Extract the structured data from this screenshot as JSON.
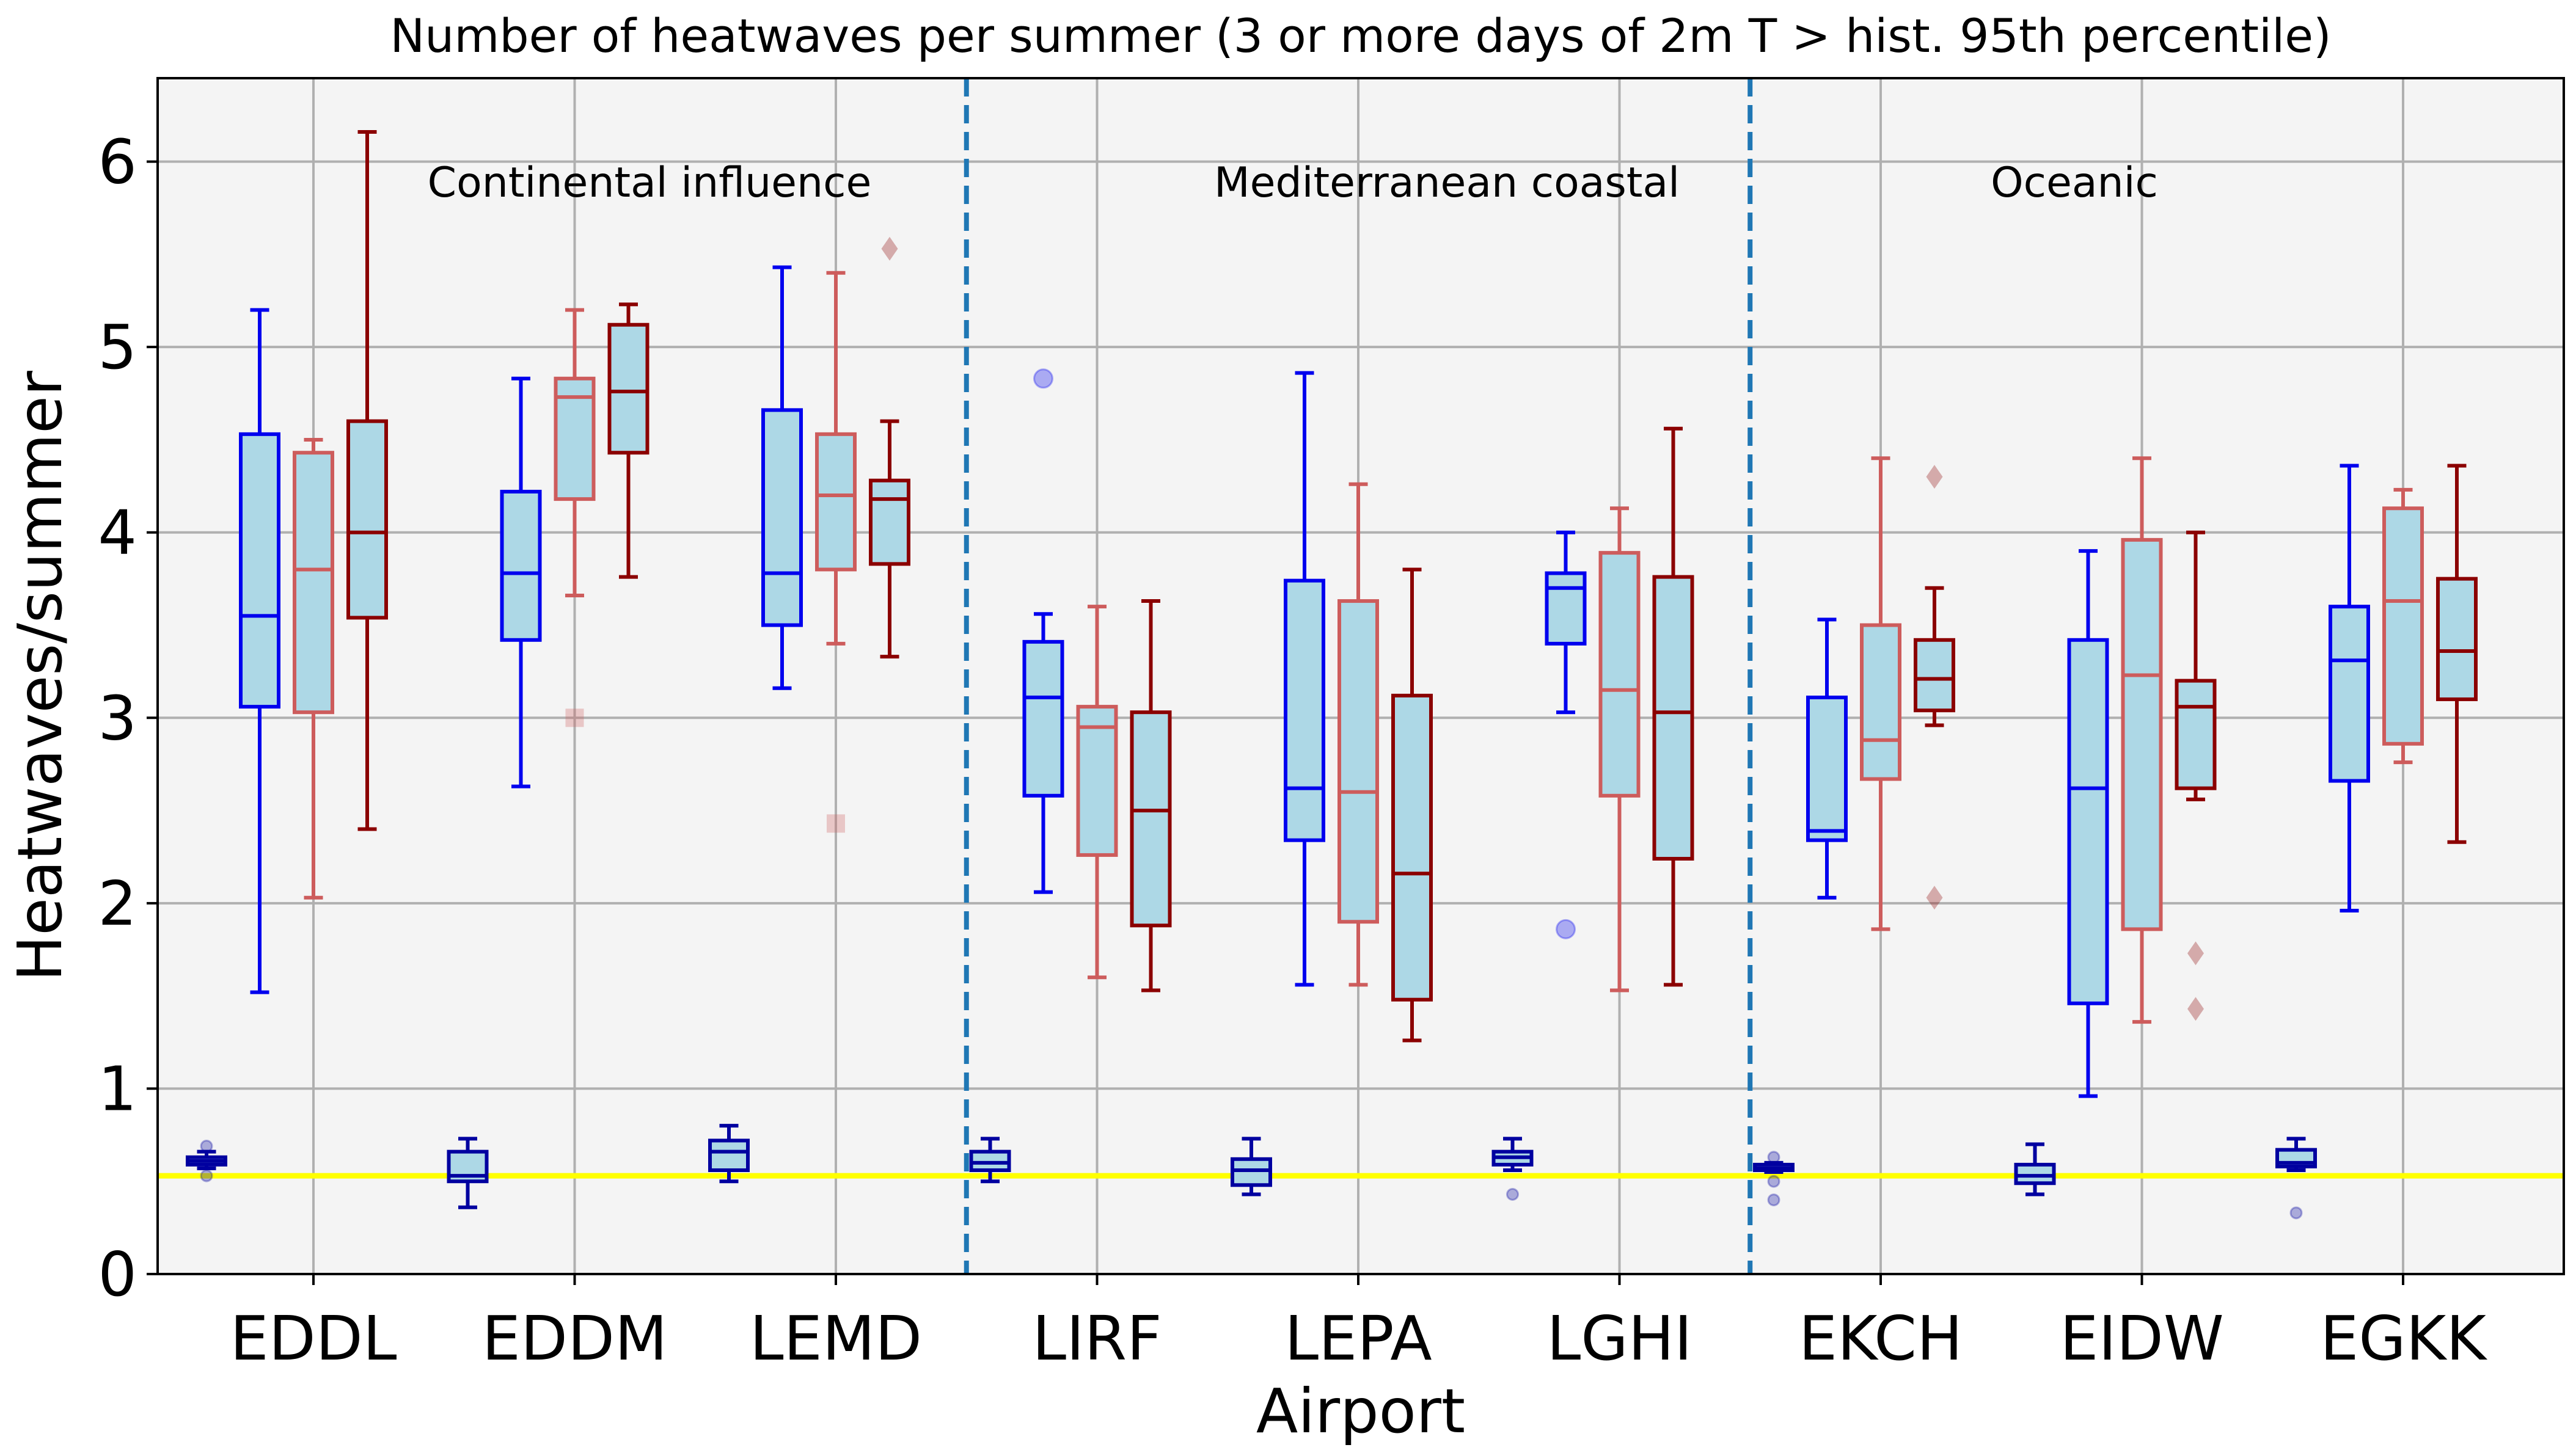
{
  "chart_data": {
    "type": "box",
    "title": "Number of heatwaves per summer (3 or more days of 2m T > hist. 95th percentile)",
    "xlabel": "Airport",
    "ylabel": "Heatwaves/summer",
    "ylim": [
      0,
      6.45
    ],
    "yticks": [
      0,
      1,
      2,
      3,
      4,
      5,
      6
    ],
    "grid": true,
    "categories": [
      "EDDL",
      "EDDM",
      "LEMD",
      "LIRF",
      "LEPA",
      "LGHI",
      "EKCH",
      "EIDW",
      "EGKK"
    ],
    "reference_line": {
      "y": 0.53,
      "color": "#ffff00"
    },
    "regions": [
      {
        "label": "Continental influence",
        "from": 0,
        "to": 2
      },
      {
        "label": "Mediterranean coastal",
        "from": 3,
        "to": 5
      },
      {
        "label": "Oceanic",
        "from": 6,
        "to": 8
      }
    ],
    "colors": {
      "background": "#f4f4f4",
      "box_fill": "#add8e6",
      "grid": "#b0b0b0",
      "divider": "#1f77b4",
      "historical": "#0000ee",
      "series_a": "#cd5c5c",
      "series_b": "#8b0000",
      "reference": "#0000a0"
    },
    "boxes": [
      {
        "airport": "EDDL",
        "slot": "historical",
        "min": 1.52,
        "q1": 3.06,
        "median": 3.55,
        "q3": 4.53,
        "max": 5.2,
        "outliers": []
      },
      {
        "airport": "EDDL",
        "slot": "series_a",
        "min": 2.03,
        "q1": 3.03,
        "median": 3.8,
        "q3": 4.43,
        "max": 4.5,
        "outliers": []
      },
      {
        "airport": "EDDL",
        "slot": "series_b",
        "min": 2.4,
        "q1": 3.54,
        "median": 4.0,
        "q3": 4.6,
        "max": 6.16,
        "outliers": []
      },
      {
        "airport": "EDDM",
        "slot": "historical",
        "min": 2.63,
        "q1": 3.42,
        "median": 3.78,
        "q3": 4.22,
        "max": 4.83,
        "outliers": []
      },
      {
        "airport": "EDDM",
        "slot": "series_a",
        "min": 3.66,
        "q1": 4.18,
        "median": 4.73,
        "q3": 4.83,
        "max": 5.2,
        "outliers": [
          3.0
        ]
      },
      {
        "airport": "EDDM",
        "slot": "series_b",
        "min": 3.76,
        "q1": 4.43,
        "median": 4.76,
        "q3": 5.12,
        "max": 5.23,
        "outliers": []
      },
      {
        "airport": "LEMD",
        "slot": "historical",
        "min": 3.16,
        "q1": 3.5,
        "median": 3.78,
        "q3": 4.66,
        "max": 5.43,
        "outliers": []
      },
      {
        "airport": "LEMD",
        "slot": "series_a",
        "min": 3.4,
        "q1": 3.8,
        "median": 4.2,
        "q3": 4.53,
        "max": 5.4,
        "outliers": [
          2.43
        ]
      },
      {
        "airport": "LEMD",
        "slot": "series_b",
        "min": 3.33,
        "q1": 3.83,
        "median": 4.18,
        "q3": 4.28,
        "max": 4.6,
        "outliers": [
          5.53
        ]
      },
      {
        "airport": "LIRF",
        "slot": "historical",
        "min": 2.06,
        "q1": 2.58,
        "median": 3.11,
        "q3": 3.41,
        "max": 3.56,
        "outliers": [
          4.83
        ]
      },
      {
        "airport": "LIRF",
        "slot": "series_a",
        "min": 1.6,
        "q1": 2.26,
        "median": 2.95,
        "q3": 3.06,
        "max": 3.6,
        "outliers": []
      },
      {
        "airport": "LIRF",
        "slot": "series_b",
        "min": 1.53,
        "q1": 1.88,
        "median": 2.5,
        "q3": 3.03,
        "max": 3.63,
        "outliers": []
      },
      {
        "airport": "LEPA",
        "slot": "historical",
        "min": 1.56,
        "q1": 2.34,
        "median": 2.62,
        "q3": 3.74,
        "max": 4.86,
        "outliers": []
      },
      {
        "airport": "LEPA",
        "slot": "series_a",
        "min": 1.56,
        "q1": 1.9,
        "median": 2.6,
        "q3": 3.63,
        "max": 4.26,
        "outliers": []
      },
      {
        "airport": "LEPA",
        "slot": "series_b",
        "min": 1.26,
        "q1": 1.48,
        "median": 2.16,
        "q3": 3.12,
        "max": 3.8,
        "outliers": []
      },
      {
        "airport": "LGHI",
        "slot": "historical",
        "min": 3.03,
        "q1": 3.4,
        "median": 3.7,
        "q3": 3.78,
        "max": 4.0,
        "outliers": [
          1.86
        ]
      },
      {
        "airport": "LGHI",
        "slot": "series_a",
        "min": 1.53,
        "q1": 2.58,
        "median": 3.15,
        "q3": 3.89,
        "max": 4.13,
        "outliers": []
      },
      {
        "airport": "LGHI",
        "slot": "series_b",
        "min": 1.56,
        "q1": 2.24,
        "median": 3.03,
        "q3": 3.76,
        "max": 4.56,
        "outliers": []
      },
      {
        "airport": "EKCH",
        "slot": "historical",
        "min": 2.03,
        "q1": 2.34,
        "median": 2.39,
        "q3": 3.11,
        "max": 3.53,
        "outliers": []
      },
      {
        "airport": "EKCH",
        "slot": "series_a",
        "min": 1.86,
        "q1": 2.67,
        "median": 2.88,
        "q3": 3.5,
        "max": 4.4,
        "outliers": []
      },
      {
        "airport": "EKCH",
        "slot": "series_b",
        "min": 2.96,
        "q1": 3.04,
        "median": 3.21,
        "q3": 3.42,
        "max": 3.7,
        "outliers": [
          4.3,
          2.03
        ]
      },
      {
        "airport": "EIDW",
        "slot": "historical",
        "min": 0.96,
        "q1": 1.46,
        "median": 2.62,
        "q3": 3.42,
        "max": 3.9,
        "outliers": []
      },
      {
        "airport": "EIDW",
        "slot": "series_a",
        "min": 1.36,
        "q1": 1.86,
        "median": 3.23,
        "q3": 3.96,
        "max": 4.4,
        "outliers": []
      },
      {
        "airport": "EIDW",
        "slot": "series_b",
        "min": 2.56,
        "q1": 2.62,
        "median": 3.06,
        "q3": 3.2,
        "max": 4.0,
        "outliers": [
          1.73,
          1.43
        ]
      },
      {
        "airport": "EGKK",
        "slot": "historical",
        "min": 1.96,
        "q1": 2.66,
        "median": 3.31,
        "q3": 3.6,
        "max": 4.36,
        "outliers": []
      },
      {
        "airport": "EGKK",
        "slot": "series_a",
        "min": 2.76,
        "q1": 2.86,
        "median": 3.63,
        "q3": 4.13,
        "max": 4.23,
        "outliers": []
      },
      {
        "airport": "EGKK",
        "slot": "series_b",
        "min": 2.33,
        "q1": 3.1,
        "median": 3.36,
        "q3": 3.75,
        "max": 4.36,
        "outliers": []
      }
    ],
    "reference_boxes": [
      {
        "airport": "EDDL",
        "min": 0.57,
        "q1": 0.59,
        "median": 0.61,
        "q3": 0.63,
        "max": 0.66,
        "outliers": [
          0.69,
          0.53
        ]
      },
      {
        "airport": "EDDM",
        "min": 0.36,
        "q1": 0.5,
        "median": 0.53,
        "q3": 0.66,
        "max": 0.73,
        "outliers": []
      },
      {
        "airport": "LEMD",
        "min": 0.5,
        "q1": 0.56,
        "median": 0.66,
        "q3": 0.72,
        "max": 0.8,
        "outliers": []
      },
      {
        "airport": "LIRF",
        "min": 0.5,
        "q1": 0.56,
        "median": 0.6,
        "q3": 0.66,
        "max": 0.73,
        "outliers": []
      },
      {
        "airport": "LEPA",
        "min": 0.43,
        "q1": 0.48,
        "median": 0.56,
        "q3": 0.62,
        "max": 0.73,
        "outliers": []
      },
      {
        "airport": "LGHI",
        "min": 0.56,
        "q1": 0.59,
        "median": 0.63,
        "q3": 0.66,
        "max": 0.73,
        "outliers": [
          0.43
        ]
      },
      {
        "airport": "EKCH",
        "min": 0.55,
        "q1": 0.56,
        "median": 0.57,
        "q3": 0.59,
        "max": 0.6,
        "outliers": [
          0.63,
          0.5,
          0.4
        ]
      },
      {
        "airport": "EIDW",
        "min": 0.43,
        "q1": 0.49,
        "median": 0.53,
        "q3": 0.59,
        "max": 0.7,
        "outliers": []
      },
      {
        "airport": "EGKK",
        "min": 0.56,
        "q1": 0.58,
        "median": 0.6,
        "q3": 0.67,
        "max": 0.73,
        "outliers": [
          0.33
        ]
      }
    ]
  }
}
